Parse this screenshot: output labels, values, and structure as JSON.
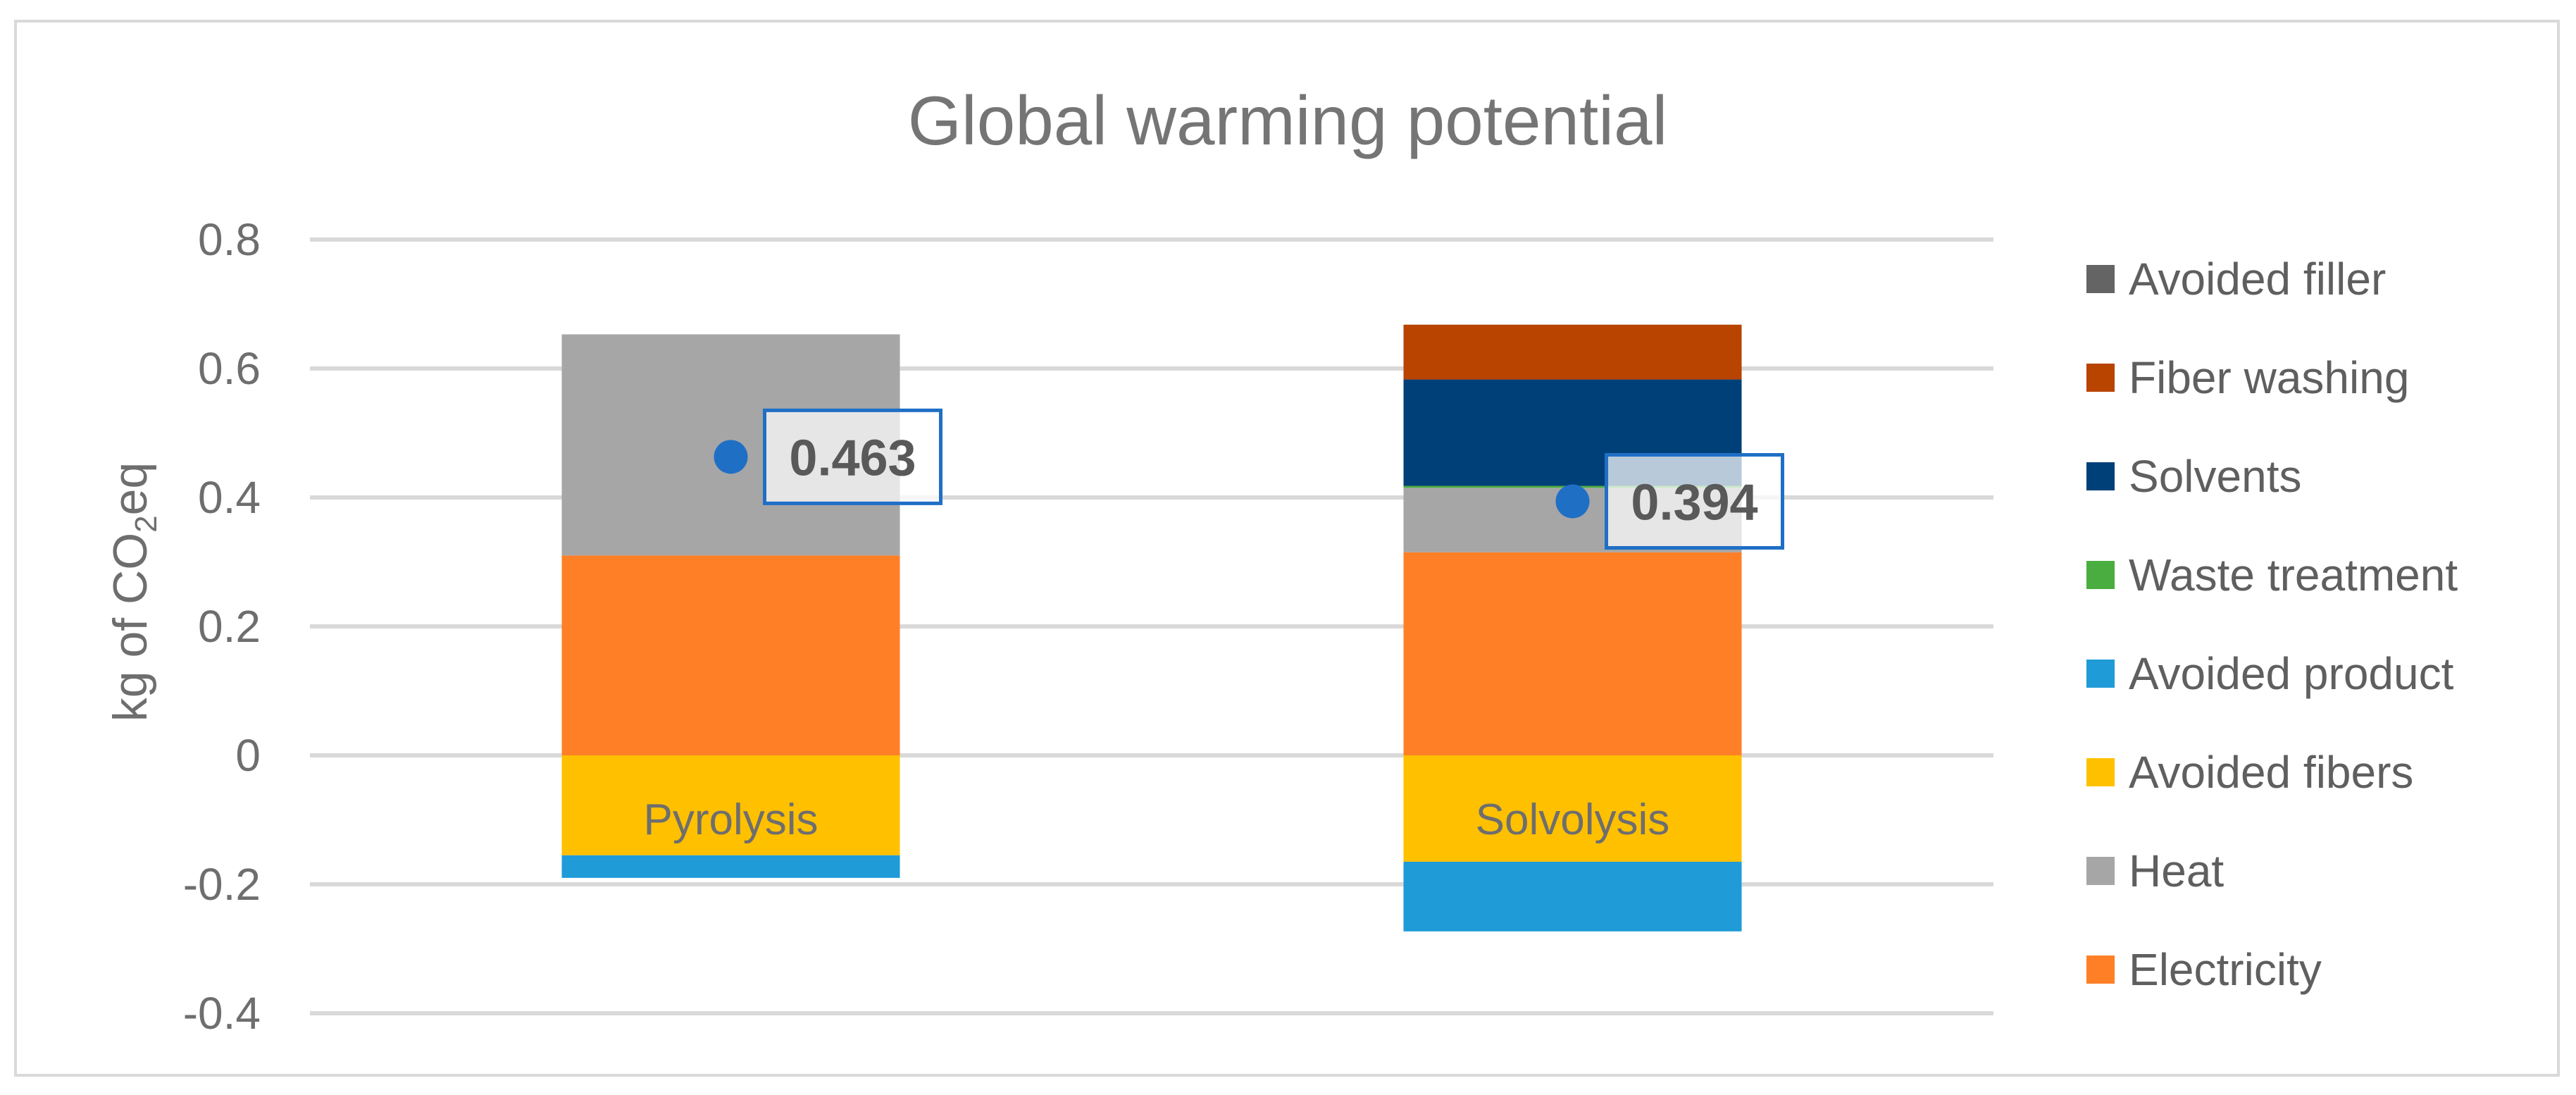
{
  "chart_data": {
    "type": "bar",
    "stacked": true,
    "title": "Global warming potential",
    "ylabel": "kg of CO2eq",
    "ylabel_parts": {
      "prefix": "kg of CO",
      "subscript": "2",
      "suffix": "eq"
    },
    "xlabel": "",
    "ylim": [
      -0.4,
      0.8
    ],
    "yticks": [
      0.8,
      0.6,
      0.4,
      0.2,
      0,
      -0.2,
      -0.4
    ],
    "ytick_labels": [
      "0.8",
      "0.6",
      "0.4",
      "0.2",
      "0",
      "-0.2",
      "-0.4"
    ],
    "grid": true,
    "legend_position": "right",
    "categories": [
      "Pyrolysis",
      "Solvolysis"
    ],
    "series": [
      {
        "name": "Electricity",
        "color": "#ff7f27",
        "values": [
          0.31,
          0.315
        ]
      },
      {
        "name": "Heat",
        "color": "#a6a6a6",
        "values": [
          0.343,
          0.1
        ]
      },
      {
        "name": "Waste treatment",
        "color": "#4aad3f",
        "values": [
          0,
          0.003
        ]
      },
      {
        "name": "Solvents",
        "color": "#004078",
        "values": [
          0,
          0.165
        ]
      },
      {
        "name": "Fiber washing",
        "color": "#b84400",
        "values": [
          0,
          0.085
        ]
      },
      {
        "name": "Avoided filler",
        "color": "#646464",
        "values": [
          0,
          0
        ]
      },
      {
        "name": "Avoided fibers",
        "color": "#ffc000",
        "values": [
          -0.155,
          -0.165
        ]
      },
      {
        "name": "Avoided product",
        "color": "#1f9bd7",
        "values": [
          -0.035,
          -0.108
        ]
      }
    ],
    "legend_order": [
      "Avoided filler",
      "Fiber washing",
      "Solvents",
      "Waste treatment",
      "Avoided product",
      "Avoided fibers",
      "Heat",
      "Electricity"
    ],
    "net_values": [
      0.463,
      0.394
    ],
    "net_labels": [
      "0.463",
      "0.394"
    ],
    "net_marker_color": "#1f6fc5",
    "net_label_border_color": "#1f6fc5"
  }
}
